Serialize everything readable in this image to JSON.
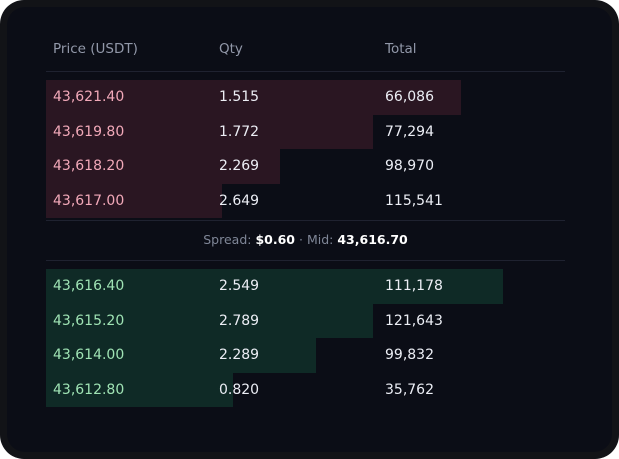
{
  "headers": {
    "price": "Price (USDT)",
    "qty": "Qty",
    "total": "Total"
  },
  "asks": [
    {
      "price": "43,621.40",
      "qty": "1.515",
      "total": "66,086",
      "depth": 0.8
    },
    {
      "price": "43,619.80",
      "qty": "1.772",
      "total": "77,294",
      "depth": 0.63
    },
    {
      "price": "43,618.20",
      "qty": "2.269",
      "total": "98,970",
      "depth": 0.45
    },
    {
      "price": "43,617.00",
      "qty": "2.649",
      "total": "115,541",
      "depth": 0.34
    }
  ],
  "bids": [
    {
      "price": "43,616.40",
      "qty": "2.549",
      "total": "111,178",
      "depth": 0.88
    },
    {
      "price": "43,615.20",
      "qty": "2.789",
      "total": "121,643",
      "depth": 0.63
    },
    {
      "price": "43,614.00",
      "qty": "2.289",
      "total": "99,832",
      "depth": 0.52
    },
    {
      "price": "43,612.80",
      "qty": "0.820",
      "total": "35,762",
      "depth": 0.36
    }
  ],
  "spread": {
    "spread_label": "Spread:",
    "spread_value": "$0.60",
    "separator": "·",
    "mid_label": "Mid:",
    "mid_value": "43,616.70"
  },
  "colors": {
    "ask_bar": "#2a1622",
    "bid_bar": "#0f2a26",
    "ask_price": "#f2a9b9",
    "bid_price": "#9fe3b4"
  }
}
